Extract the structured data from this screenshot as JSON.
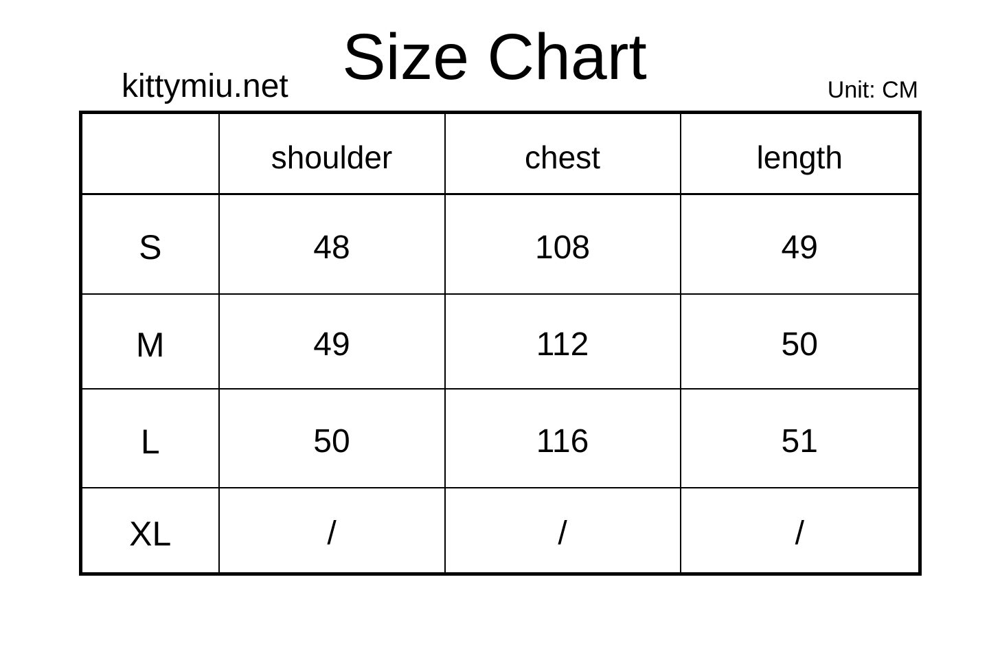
{
  "header": {
    "title": "Size Chart",
    "site": "kittymiu.net",
    "unit": "Unit: CM"
  },
  "chart_data": {
    "type": "table",
    "title": "Size Chart",
    "unit": "CM",
    "source_text": "kittymiu.net",
    "columns": [
      "",
      "shoulder",
      "chest",
      "length"
    ],
    "rows": [
      [
        "S",
        "48",
        "108",
        "49"
      ],
      [
        "M",
        "49",
        "112",
        "50"
      ],
      [
        "L",
        "50",
        "116",
        "51"
      ],
      [
        "XL",
        "/",
        "/",
        "/"
      ]
    ],
    "colors": {
      "text": "#000000",
      "background": "#ffffff",
      "border": "#000000"
    }
  }
}
